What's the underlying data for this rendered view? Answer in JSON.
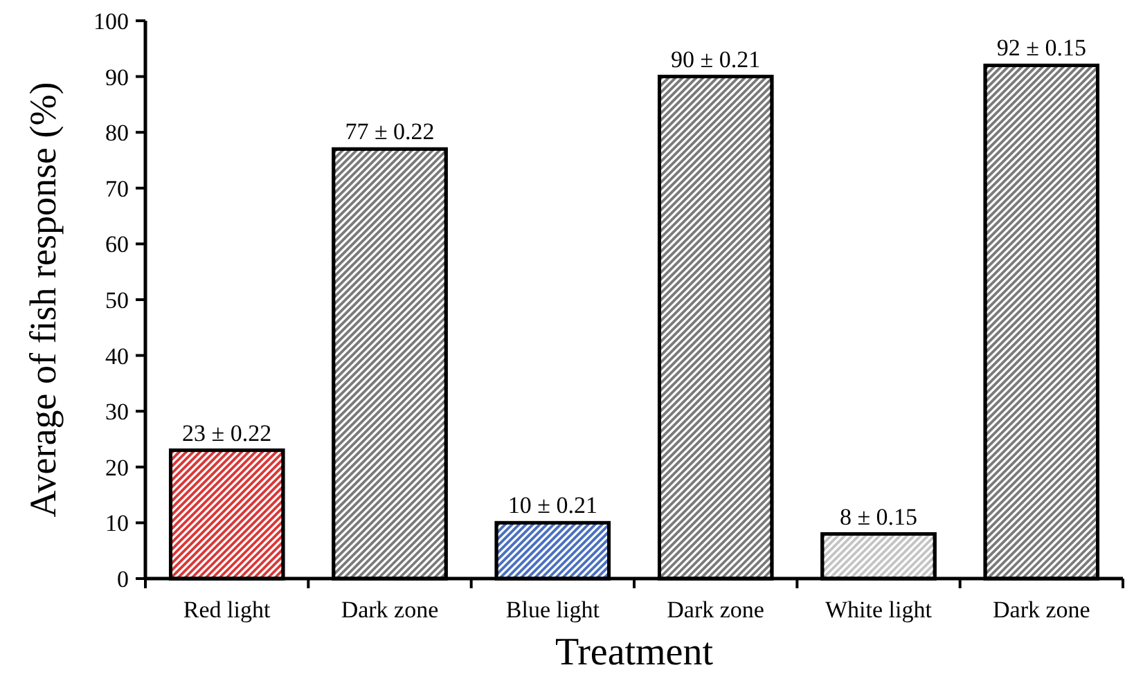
{
  "chart_data": {
    "type": "bar",
    "xlabel": "Treatment",
    "ylabel": "Average of fish response (%)",
    "categories": [
      "Red light",
      "Dark zone",
      "Blue light",
      "Dark zone",
      "White light",
      "Dark zone"
    ],
    "values": [
      23,
      77,
      10,
      90,
      8,
      92
    ],
    "colors": [
      "#d93838",
      "#7a7a7a",
      "#4a70bf",
      "#7a7a7a",
      "#c4c4c4",
      "#7a7a7a"
    ],
    "value_labels": [
      "23 ± 0.22",
      "77 ± 0.22",
      "10 ± 0.21",
      "90 ± 0.21",
      "8 ± 0.15",
      "92 ± 0.15"
    ],
    "ylim": [
      0,
      100
    ],
    "yticks": [
      0,
      10,
      20,
      30,
      40,
      50,
      60,
      70,
      80,
      90,
      100
    ],
    "grid": false
  }
}
